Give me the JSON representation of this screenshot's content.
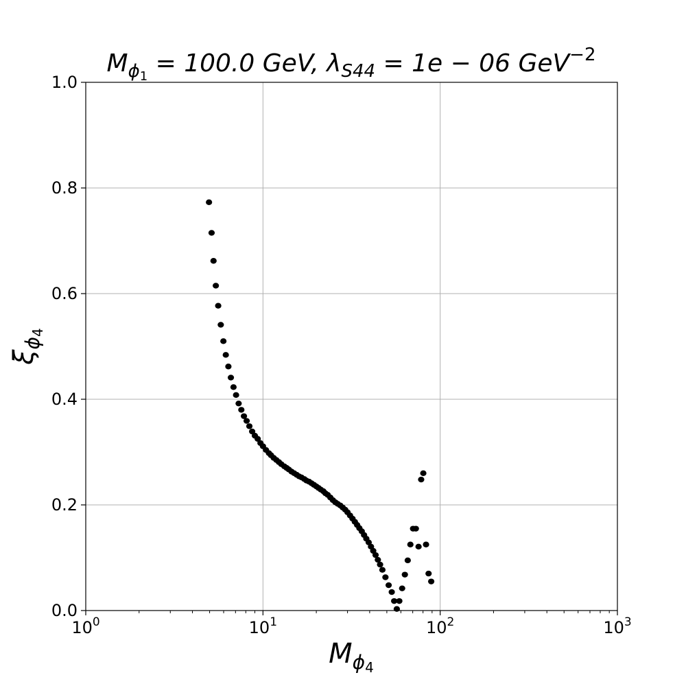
{
  "chart_data": {
    "type": "scatter",
    "title": {
      "lhs_main": "M",
      "lhs_sub": "ϕ",
      "lhs_subsub": "1",
      "lhs_rest": " = 100.0 GeV, λ",
      "lam_sub": "S44",
      "rhs_main": " = 1e − 06 GeV",
      "rhs_sup": "−2"
    },
    "xlabel": {
      "main": "M",
      "sub": "ϕ",
      "subsub": "4"
    },
    "ylabel": {
      "main": "ξ",
      "sub": "ϕ",
      "subsub": "4"
    },
    "x_scale": "log",
    "xlim": [
      1,
      1000
    ],
    "ylim": [
      0.0,
      1.0
    ],
    "grid": true,
    "marker_color": "#000000",
    "x_tick_labels": [
      {
        "base": "10",
        "exp": "0",
        "value": 1
      },
      {
        "base": "10",
        "exp": "1",
        "value": 10
      },
      {
        "base": "10",
        "exp": "2",
        "value": 100
      },
      {
        "base": "10",
        "exp": "3",
        "value": 1000
      }
    ],
    "y_tick_labels": [
      "0.0",
      "0.2",
      "0.4",
      "0.6",
      "0.8",
      "1.0"
    ],
    "y_tick_values": [
      0.0,
      0.2,
      0.4,
      0.6,
      0.8,
      1.0
    ],
    "points": [
      [
        4.96,
        0.773
      ],
      [
        5.13,
        0.715
      ],
      [
        5.26,
        0.662
      ],
      [
        5.42,
        0.615
      ],
      [
        5.59,
        0.577
      ],
      [
        5.78,
        0.541
      ],
      [
        5.98,
        0.51
      ],
      [
        6.17,
        0.484
      ],
      [
        6.38,
        0.462
      ],
      [
        6.59,
        0.441
      ],
      [
        6.82,
        0.423
      ],
      [
        7.05,
        0.408
      ],
      [
        7.29,
        0.392
      ],
      [
        7.55,
        0.38
      ],
      [
        7.81,
        0.368
      ],
      [
        8.09,
        0.359
      ],
      [
        8.38,
        0.349
      ],
      [
        8.69,
        0.339
      ],
      [
        9.0,
        0.331
      ],
      [
        9.34,
        0.325
      ],
      [
        9.68,
        0.317
      ],
      [
        10.0,
        0.311
      ],
      [
        10.4,
        0.304
      ],
      [
        10.8,
        0.298
      ],
      [
        11.1,
        0.294
      ],
      [
        11.5,
        0.289
      ],
      [
        11.9,
        0.285
      ],
      [
        12.3,
        0.281
      ],
      [
        12.7,
        0.277
      ],
      [
        13.2,
        0.273
      ],
      [
        13.6,
        0.27
      ],
      [
        14.0,
        0.267
      ],
      [
        14.5,
        0.263
      ],
      [
        15.0,
        0.26
      ],
      [
        15.5,
        0.257
      ],
      [
        16.0,
        0.254
      ],
      [
        16.5,
        0.252
      ],
      [
        17.1,
        0.249
      ],
      [
        17.6,
        0.246
      ],
      [
        18.2,
        0.244
      ],
      [
        18.8,
        0.241
      ],
      [
        19.4,
        0.238
      ],
      [
        20.0,
        0.235
      ],
      [
        20.6,
        0.232
      ],
      [
        21.2,
        0.229
      ],
      [
        21.9,
        0.226
      ],
      [
        22.5,
        0.222
      ],
      [
        23.2,
        0.219
      ],
      [
        24.0,
        0.214
      ],
      [
        24.8,
        0.209
      ],
      [
        25.6,
        0.205
      ],
      [
        26.4,
        0.202
      ],
      [
        27.3,
        0.199
      ],
      [
        28.2,
        0.195
      ],
      [
        29.1,
        0.191
      ],
      [
        30.0,
        0.186
      ],
      [
        31.0,
        0.18
      ],
      [
        32.0,
        0.174
      ],
      [
        33.0,
        0.168
      ],
      [
        34.0,
        0.162
      ],
      [
        35.0,
        0.156
      ],
      [
        36.1,
        0.15
      ],
      [
        37.2,
        0.143
      ],
      [
        38.3,
        0.136
      ],
      [
        39.5,
        0.129
      ],
      [
        40.7,
        0.121
      ],
      [
        41.9,
        0.113
      ],
      [
        43.2,
        0.105
      ],
      [
        44.5,
        0.096
      ],
      [
        45.8,
        0.087
      ],
      [
        47.2,
        0.077
      ],
      [
        49.1,
        0.063
      ],
      [
        51.2,
        0.048
      ],
      [
        53.3,
        0.035
      ],
      [
        55.0,
        0.018
      ],
      [
        56.9,
        0.003
      ],
      [
        58.8,
        0.018
      ],
      [
        61.0,
        0.042
      ],
      [
        63.2,
        0.068
      ],
      [
        65.6,
        0.095
      ],
      [
        67.9,
        0.125
      ],
      [
        70.3,
        0.155
      ],
      [
        72.9,
        0.155
      ],
      [
        75.5,
        0.121
      ],
      [
        78.1,
        0.248
      ],
      [
        80.3,
        0.26
      ],
      [
        83.2,
        0.125
      ],
      [
        86.0,
        0.07
      ],
      [
        89.0,
        0.055
      ]
    ]
  }
}
